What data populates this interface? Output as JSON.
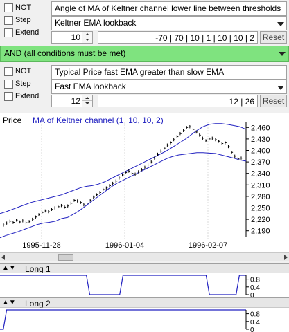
{
  "condition1": {
    "not_label": "NOT",
    "step_label": "Step",
    "extend_label": "Extend",
    "title": "Angle of MA of Keltner channel lower line between thresholds",
    "combo_value": "Keltner EMA lookback",
    "spin_value": "10",
    "params": "-70  |  70  |  10  |  1  |  10  |  10  |  2",
    "reset_label": "Reset"
  },
  "operator": {
    "label": "AND    (all conditions must be met)",
    "color": "#7fe37f"
  },
  "condition2": {
    "not_label": "NOT",
    "step_label": "Step",
    "extend_label": "Extend",
    "title": "Typical Price fast EMA greater than slow EMA",
    "combo_value": "Fast EMA lookback",
    "spin_value": "12",
    "params": "12  |  26",
    "reset_label": "Reset"
  },
  "chart": {
    "price_label": "Price",
    "series_label": "MA of Keltner channel (1, 10, 10, 2)",
    "series_color": "#2020c0"
  },
  "chart_data": {
    "type": "line",
    "x_ticks": [
      "1995-11-28",
      "1996-01-04",
      "1996-02-07"
    ],
    "y_ticks": [
      2190,
      2220,
      2250,
      2280,
      2310,
      2340,
      2370,
      2400,
      2430,
      2460
    ],
    "ylim": [
      2175,
      2475
    ],
    "price_closes": [
      2205,
      2210,
      2215,
      2212,
      2218,
      2213,
      2216,
      2211,
      2214,
      2220,
      2226,
      2232,
      2238,
      2242,
      2240,
      2246,
      2250,
      2253,
      2256,
      2252,
      2255,
      2262,
      2270,
      2268,
      2264,
      2258,
      2262,
      2270,
      2278,
      2284,
      2290,
      2298,
      2302,
      2308,
      2314,
      2320,
      2328,
      2336,
      2342,
      2346,
      2340,
      2338,
      2344,
      2350,
      2356,
      2362,
      2370,
      2380,
      2390,
      2398,
      2406,
      2414,
      2420,
      2428,
      2436,
      2444,
      2452,
      2460,
      2462,
      2455,
      2448,
      2440,
      2432,
      2425,
      2430,
      2432,
      2428,
      2424,
      2418,
      2420,
      2410,
      2395,
      2385,
      2378,
      2380
    ],
    "upper_band": [
      2235,
      2240,
      2246,
      2252,
      2258,
      2264,
      2268,
      2272,
      2276,
      2280,
      2284,
      2290,
      2296,
      2302,
      2306,
      2308,
      2312,
      2318,
      2326,
      2334,
      2342,
      2350,
      2358,
      2366,
      2374,
      2382,
      2390,
      2398,
      2408,
      2418,
      2428,
      2440,
      2452,
      2462,
      2468,
      2470,
      2470,
      2468,
      2465,
      2462,
      2455
    ],
    "lower_band": [
      2172,
      2178,
      2183,
      2188,
      2194,
      2200,
      2206,
      2210,
      2212,
      2215,
      2222,
      2225,
      2234,
      2244,
      2256,
      2268,
      2280,
      2292,
      2304,
      2314,
      2322,
      2330,
      2338,
      2346,
      2354,
      2362,
      2370,
      2378,
      2384,
      2388,
      2390,
      2392,
      2394,
      2394,
      2393,
      2392,
      2388,
      2384,
      2380,
      2375,
      2372
    ]
  },
  "panes": [
    {
      "name": "Long 1",
      "ticks": [
        "0.8",
        "0.4",
        "0"
      ],
      "values": [
        1,
        1,
        1,
        1,
        1,
        1,
        1,
        1,
        1,
        1,
        1,
        1,
        1,
        1,
        1,
        1,
        1,
        1,
        1,
        1,
        1,
        1,
        1,
        1,
        1,
        1,
        1,
        0,
        0,
        0,
        0,
        0,
        0,
        0,
        0,
        0,
        0,
        1,
        1,
        1,
        1,
        1,
        1,
        1,
        1,
        1,
        1,
        1,
        1,
        1,
        1,
        1,
        1,
        1,
        1,
        1,
        1,
        1,
        1,
        1,
        1,
        1,
        1,
        0,
        0,
        0,
        0,
        0,
        0,
        0,
        0,
        0,
        1,
        1,
        1
      ]
    },
    {
      "name": "Long 2",
      "ticks": [
        "0.8",
        "0.4",
        "0"
      ],
      "values": [
        0,
        0,
        1,
        1,
        1,
        1,
        1,
        1,
        1,
        1,
        1,
        1,
        1,
        1,
        1,
        1,
        1,
        1,
        1,
        1,
        1,
        1,
        1,
        1,
        1,
        1,
        1,
        1,
        1,
        1,
        1,
        1,
        1,
        1,
        1,
        1,
        1,
        1,
        1,
        1,
        1,
        1,
        1,
        1,
        1,
        1,
        1,
        1,
        1,
        1,
        1,
        1,
        1,
        1,
        1,
        1,
        1,
        1,
        1,
        1,
        1,
        1,
        1,
        1,
        1,
        1,
        1,
        1,
        1,
        1,
        1,
        1,
        1,
        1,
        1
      ]
    }
  ],
  "colors": {
    "pane_line": "#2020c0",
    "chart_bg": "#ffffff"
  }
}
